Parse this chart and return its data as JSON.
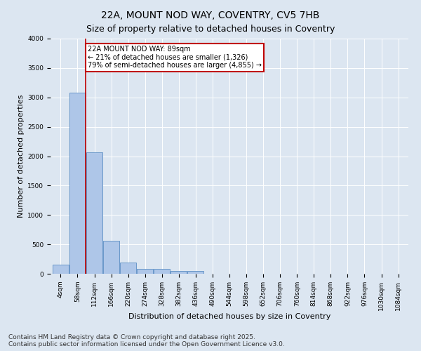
{
  "title": "22A, MOUNT NOD WAY, COVENTRY, CV5 7HB",
  "subtitle": "Size of property relative to detached houses in Coventry",
  "xlabel": "Distribution of detached houses by size in Coventry",
  "ylabel": "Number of detached properties",
  "bin_labels": [
    "4sqm",
    "58sqm",
    "112sqm",
    "166sqm",
    "220sqm",
    "274sqm",
    "328sqm",
    "382sqm",
    "436sqm",
    "490sqm",
    "544sqm",
    "598sqm",
    "652sqm",
    "706sqm",
    "760sqm",
    "814sqm",
    "868sqm",
    "922sqm",
    "976sqm",
    "1030sqm",
    "1084sqm"
  ],
  "bar_values": [
    150,
    3080,
    2060,
    560,
    190,
    80,
    80,
    50,
    50,
    0,
    0,
    0,
    0,
    0,
    0,
    0,
    0,
    0,
    0,
    0,
    0
  ],
  "bar_color": "#aec6e8",
  "bar_edge_color": "#5b8ec4",
  "background_color": "#dce6f1",
  "grid_color": "#ffffff",
  "vline_x_bar": 1,
  "vline_color": "#c00000",
  "annotation_text": "22A MOUNT NOD WAY: 89sqm\n← 21% of detached houses are smaller (1,326)\n79% of semi-detached houses are larger (4,855) →",
  "annotation_box_color": "#ffffff",
  "annotation_box_edge": "#c00000",
  "ylim": [
    0,
    4000
  ],
  "yticks": [
    0,
    500,
    1000,
    1500,
    2000,
    2500,
    3000,
    3500,
    4000
  ],
  "footer": "Contains HM Land Registry data © Crown copyright and database right 2025.\nContains public sector information licensed under the Open Government Licence v3.0.",
  "title_fontsize": 10,
  "subtitle_fontsize": 9,
  "axis_label_fontsize": 8,
  "tick_fontsize": 6.5,
  "footer_fontsize": 6.5
}
